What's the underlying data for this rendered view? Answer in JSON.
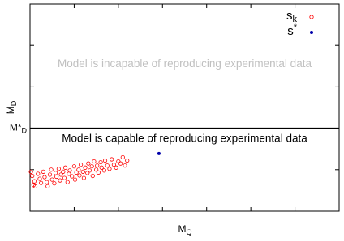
{
  "chart_data": {
    "type": "scatter",
    "xlabel": {
      "text": "M",
      "sub": "Q"
    },
    "ylabel": {
      "text": "M",
      "sub": "D"
    },
    "xlim": [
      0,
      7
    ],
    "ylim": [
      0,
      5
    ],
    "xticks": [
      1,
      2,
      3,
      4,
      5,
      6
    ],
    "yticks": [
      1,
      2,
      3,
      4
    ],
    "threshold": {
      "value": 2,
      "text": "M*",
      "sub": "D"
    },
    "annotations": [
      {
        "text": "Model is incapable of reproducing experimental data",
        "color": "#c0c0c0",
        "x": 3.5,
        "y": 3.55
      },
      {
        "text": "Model is capable of reproducing experimental data",
        "color": "#000000",
        "x": 3.5,
        "y": 1.74
      }
    ],
    "legend": "upper right",
    "series": [
      {
        "name": "s",
        "subscript": "k",
        "color": "#ff0000",
        "marker": "open",
        "x": [
          0.05,
          0.1,
          0.12,
          0.18,
          0.22,
          0.25,
          0.3,
          0.33,
          0.38,
          0.4,
          0.45,
          0.48,
          0.5,
          0.55,
          0.58,
          0.6,
          0.65,
          0.68,
          0.7,
          0.75,
          0.78,
          0.8,
          0.85,
          0.88,
          0.9,
          0.95,
          1.0,
          1.02,
          1.05,
          1.1,
          1.12,
          1.15,
          1.2,
          1.22,
          1.25,
          1.3,
          1.32,
          1.35,
          1.4,
          1.42,
          1.45,
          1.5,
          1.52,
          1.55,
          1.6,
          1.62,
          1.68,
          1.7,
          1.75,
          1.8,
          1.85,
          1.9,
          1.95,
          2.0,
          2.05,
          2.1,
          2.15,
          2.2,
          0.02,
          0.08
        ],
        "values": [
          0.85,
          0.72,
          0.6,
          0.9,
          0.78,
          0.68,
          0.95,
          0.82,
          0.7,
          0.6,
          0.88,
          1.0,
          0.76,
          0.67,
          0.92,
          0.83,
          1.02,
          0.74,
          0.88,
          0.95,
          0.8,
          1.05,
          0.7,
          0.9,
          0.98,
          0.84,
          1.08,
          0.76,
          0.93,
          1.0,
          0.86,
          1.12,
          0.95,
          0.8,
          1.05,
          0.92,
          1.15,
          0.98,
          1.08,
          0.85,
          1.2,
          1.0,
          1.1,
          0.93,
          1.18,
          1.05,
          0.98,
          1.22,
          1.1,
          1.02,
          1.25,
          1.12,
          1.05,
          1.2,
          1.15,
          1.3,
          1.1,
          1.22,
          0.95,
          0.63
        ]
      },
      {
        "name": "s",
        "superscript": "*",
        "color": "#0000aa",
        "marker": "filled",
        "x": [
          2.92
        ],
        "values": [
          1.39
        ]
      }
    ]
  }
}
